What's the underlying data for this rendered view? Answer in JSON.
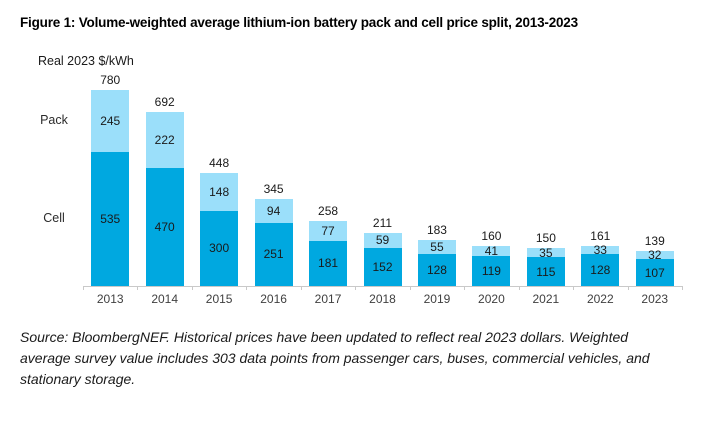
{
  "page": {
    "title": "Figure 1: Volume-weighted average lithium-ion battery pack and cell price split, 2013-2023",
    "source_lines": [
      "Source: BloombergNEF. Historical prices have been updated to reflect real 2023 dollars. Weighted",
      "average survey value includes 303 data points from passenger cars, buses, commercial vehicles, and",
      "stationary storage."
    ]
  },
  "chart_data": {
    "type": "bar",
    "stacked": true,
    "title": "Figure 1: Volume-weighted average lithium-ion battery pack and cell price split, 2013-2023",
    "unit_label": "Real 2023 $/kWh",
    "xlabel": "",
    "ylabel": "Real 2023 $/kWh",
    "categories": [
      "2013",
      "2014",
      "2015",
      "2016",
      "2017",
      "2018",
      "2019",
      "2020",
      "2021",
      "2022",
      "2023"
    ],
    "series": [
      {
        "name": "Cell",
        "color": "#00a8e0",
        "values": [
          535,
          470,
          300,
          251,
          181,
          152,
          128,
          119,
          115,
          128,
          107
        ]
      },
      {
        "name": "Pack",
        "color": "#9bdffa",
        "values": [
          245,
          222,
          148,
          94,
          77,
          59,
          55,
          41,
          35,
          33,
          32
        ]
      }
    ],
    "totals": [
      780,
      692,
      448,
      345,
      258,
      211,
      183,
      160,
      150,
      161,
      139
    ],
    "ylim": [
      0,
      780
    ],
    "grid": false,
    "legend_position": "series labels left of first bar",
    "axis_color": "#c9c9c9",
    "value_label_color": "#1a1a1a",
    "tick_label_color": "#404040"
  }
}
